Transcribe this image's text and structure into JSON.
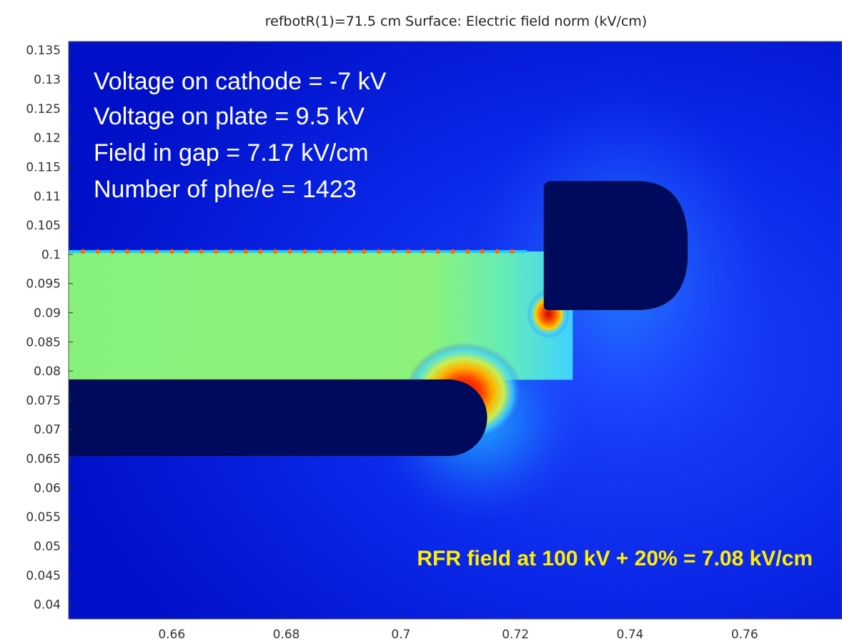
{
  "chart_data": {
    "type": "heatmap",
    "title": "refbotR(1)=71.5 cm   Surface: Electric field norm (kV/cm)",
    "xlabel": "",
    "ylabel": "",
    "xlim": [
      0.642,
      0.777
    ],
    "ylim": [
      0.0375,
      0.1365
    ],
    "x_ticks": [
      0.66,
      0.68,
      0.7,
      0.72,
      0.74,
      0.76
    ],
    "x_tick_labels": [
      "0.66",
      "0.68",
      "0.7",
      "0.72",
      "0.74",
      "0.76"
    ],
    "y_ticks": [
      0.135,
      0.13,
      0.125,
      0.12,
      0.115,
      0.11,
      0.105,
      0.1,
      0.095,
      0.09,
      0.085,
      0.08,
      0.075,
      0.07,
      0.065,
      0.06,
      0.055,
      0.05,
      0.045,
      0.04
    ],
    "y_tick_labels": [
      "0.135",
      "0.13",
      "0.125",
      "0.12",
      "0.115",
      "0.11",
      "0.105",
      "0.1",
      "0.095",
      "0.09",
      "0.085",
      "0.08",
      "0.075",
      "0.07",
      "0.065",
      "0.06",
      "0.055",
      "0.05",
      "0.045",
      "0.04"
    ],
    "colormap": "jet",
    "electrodes": [
      {
        "name": "cathode",
        "x_start": 0.642,
        "x_end": 0.715,
        "y_bottom": 0.0655,
        "y_top": 0.0785
      },
      {
        "name": "plate",
        "x_start": 0.725,
        "x_end": 0.75,
        "y_bottom": 0.0905,
        "y_top": 0.1125
      }
    ],
    "grid_wire_row": {
      "y": 0.1005,
      "x_start": 0.642,
      "x_end": 0.722
    },
    "annotations": [
      "Voltage on cathode = -7 kV",
      "Voltage on plate = 9.5 kV",
      "Field in gap = 7.17 kV/cm",
      "Number of phe/e = 1423",
      "RFR field at 100 kV + 20% = 7.08 kV/cm"
    ]
  },
  "colors": {
    "background_field": "#0018d8",
    "electrode": "#000a5c",
    "gap_field": "#86f27c",
    "hotspot": "#e01000",
    "annotation_text": "#ffffff",
    "rfr_text": "#ffee00"
  }
}
